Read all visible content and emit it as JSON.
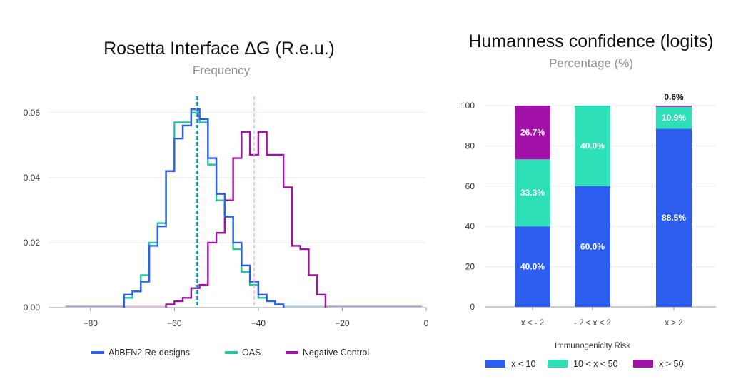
{
  "chart_data": [
    {
      "type": "line",
      "title": "Rosetta Interface ΔG (R.e.u.)",
      "subtitle": "Frequency",
      "xlim": [
        -90,
        0
      ],
      "ylim": [
        0,
        0.065
      ],
      "x_ticks": [
        -80,
        -60,
        -40,
        -20,
        0
      ],
      "x_tick_labels": [
        "−80",
        "−60",
        "−40",
        "−20",
        "0"
      ],
      "y_ticks": [
        0,
        0.02,
        0.04,
        0.06
      ],
      "y_tick_labels": [
        "0.00",
        "0.02",
        "0.04",
        "0.06"
      ],
      "grid": true,
      "legend_position": "bottom",
      "series": [
        {
          "name": "AbBFN2 Re-designs",
          "color": "#2d5ef0",
          "mean": -54.5,
          "bin_edges": [
            -72,
            -70,
            -68,
            -66,
            -64,
            -62,
            -60,
            -58,
            -56,
            -54,
            -52,
            -50,
            -48,
            -46,
            -44,
            -42,
            -40,
            -38,
            -36,
            -34
          ],
          "values": [
            0.004,
            0.005,
            0.008,
            0.019,
            0.025,
            0.042,
            0.052,
            0.056,
            0.061,
            0.058,
            0.046,
            0.035,
            0.028,
            0.02,
            0.013,
            0.008,
            0.004,
            0.002,
            0.001
          ]
        },
        {
          "name": "OAS",
          "color": "#1fc99a",
          "mean": -54.8,
          "bin_edges": [
            -72,
            -70,
            -68,
            -66,
            -64,
            -62,
            -60,
            -58,
            -56,
            -54,
            -52,
            -50,
            -48,
            -46,
            -44,
            -42,
            -40,
            -38,
            -36,
            -34
          ],
          "values": [
            0.003,
            0.005,
            0.01,
            0.02,
            0.026,
            0.042,
            0.057,
            0.057,
            0.06,
            0.057,
            0.044,
            0.033,
            0.028,
            0.018,
            0.011,
            0.007,
            0.003,
            0.002,
            0.001
          ]
        },
        {
          "name": "Negative Control",
          "color": "#a312a8",
          "mean": -41.0,
          "bin_edges": [
            -62,
            -60,
            -58,
            -56,
            -54,
            -52,
            -50,
            -48,
            -46,
            -44,
            -42,
            -40,
            -38,
            -36,
            -34,
            -32,
            -30,
            -28,
            -26,
            -24
          ],
          "values": [
            0.001,
            0.002,
            0.003,
            0.006,
            0.007,
            0.02,
            0.023,
            0.033,
            0.046,
            0.054,
            0.047,
            0.054,
            0.047,
            0.047,
            0.037,
            0.019,
            0.018,
            0.01,
            0.004
          ]
        }
      ]
    },
    {
      "type": "bar",
      "stacked": true,
      "title": "Humanness confidence (logits)",
      "subtitle": "Percentage (%)",
      "xlabel": "Immunogenicity Risk",
      "categories": [
        "x < - 2",
        "- 2 < x < 2",
        "x > 2"
      ],
      "ylim": [
        0,
        100
      ],
      "y_ticks": [
        0,
        20,
        40,
        60,
        80,
        100
      ],
      "grid": true,
      "legend_position": "bottom",
      "series": [
        {
          "name": "x < 10",
          "color": "#2d5ef0",
          "values": [
            40.0,
            60.0,
            88.5
          ],
          "labels": [
            "40.0%",
            "60.0%",
            "88.5%"
          ]
        },
        {
          "name": "10 < x < 50",
          "color": "#2ee0b8",
          "values": [
            33.3,
            40.0,
            10.9
          ],
          "labels": [
            "33.3%",
            "40.0%",
            "10.9%"
          ]
        },
        {
          "name": "x > 50",
          "color": "#a312a8",
          "values": [
            26.7,
            0.0,
            0.6
          ],
          "labels": [
            "26.7%",
            "",
            "0.6%"
          ]
        }
      ]
    }
  ]
}
